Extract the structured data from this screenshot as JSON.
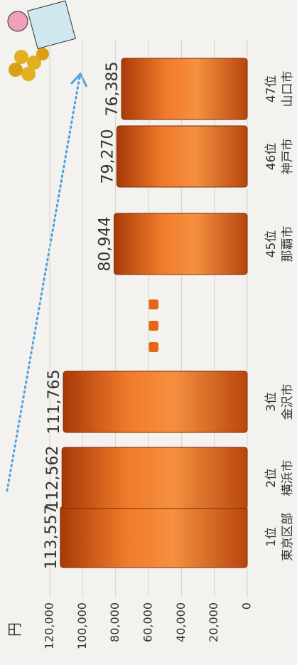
{
  "chart_data": {
    "type": "bar",
    "y_unit": "円",
    "ranks": [
      "1位",
      "2位",
      "3位",
      "45位",
      "46位",
      "47位"
    ],
    "categories": [
      "東京区部",
      "横浜市",
      "金沢市",
      "那覇市",
      "神戸市",
      "山口市"
    ],
    "values": [
      113557,
      112562,
      111765,
      80944,
      79270,
      76385
    ],
    "value_labels": [
      "113,557",
      "112,562",
      "111,765",
      "80,944",
      "79,270",
      "76,385"
    ],
    "color": "#e8641a",
    "ylim": [
      0,
      120000
    ],
    "yticks": [
      0,
      {
        "value": 20000,
        "label": "20,000"
      },
      {
        "value": 40000,
        "label": "40,000"
      },
      {
        "value": 60000,
        "label": "60,000"
      },
      {
        "value": 80000,
        "label": "80,000"
      },
      {
        "value": 100000,
        "label": "100,000"
      },
      {
        "value": 120000,
        "label": "120,000"
      }
    ],
    "grid": true
  }
}
